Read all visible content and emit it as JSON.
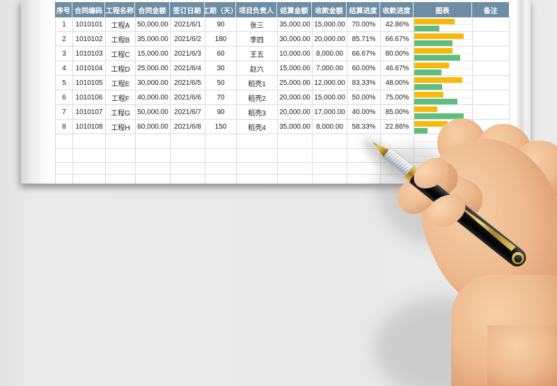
{
  "colors": {
    "backdrop": "#E9E9E9",
    "sheet": "#FFFFFF",
    "header_bg": "#6E8CA3",
    "header_text": "#FFFFFF",
    "grid_line": "#D8DBDD",
    "bar_settlement_orange": "#F9B80C",
    "bar_collection_green": "#5FBD7D"
  },
  "overlay": {
    "pen_icon": "fountain-pen",
    "hand_icon": "right-hand-holding-pen"
  },
  "table": {
    "columns": [
      {
        "key": "seq",
        "label": "序号"
      },
      {
        "key": "code",
        "label": "合同编码"
      },
      {
        "key": "name",
        "label": "工程名称"
      },
      {
        "key": "amount",
        "label": "合同金额"
      },
      {
        "key": "date",
        "label": "签订日期"
      },
      {
        "key": "days",
        "label": "工期（天）"
      },
      {
        "key": "owner",
        "label": "项目负责人"
      },
      {
        "key": "settle-amount",
        "label": "结算金额"
      },
      {
        "key": "receive-amount",
        "label": "收款金额"
      },
      {
        "key": "settle-pct",
        "label": "结算进度"
      },
      {
        "key": "receive-pct",
        "label": "收款进度"
      },
      {
        "key": "chart",
        "label": "图表"
      },
      {
        "key": "remark",
        "label": "备注"
      }
    ],
    "rows": [
      {
        "cells": [
          "1",
          "1010101",
          "工程A",
          "50,000.00",
          "2021/6/1",
          "90",
          "张三",
          "35,000.00",
          "15,000.00",
          "70.00%",
          "42.86%"
        ],
        "bars": {
          "settlement": 70.0,
          "collection": 42.86
        },
        "remark": ""
      },
      {
        "cells": [
          "2",
          "1010102",
          "工程B",
          "35,000.00",
          "2021/6/2",
          "180",
          "李四",
          "30,000.00",
          "20,000.00",
          "85.71%",
          "66.67%"
        ],
        "bars": {
          "settlement": 85.71,
          "collection": 66.67
        },
        "remark": ""
      },
      {
        "cells": [
          "3",
          "1010103",
          "工程C",
          "15,000.00",
          "2021/6/3",
          "60",
          "王五",
          "10,000.00",
          "8,000.00",
          "66.67%",
          "80.00%"
        ],
        "bars": {
          "settlement": 66.67,
          "collection": 80.0
        },
        "remark": ""
      },
      {
        "cells": [
          "4",
          "1010104",
          "工程D",
          "25,000.00",
          "2021/6/4",
          "30",
          "赵六",
          "15,000.00",
          "7,000.00",
          "60.00%",
          "46.67%"
        ],
        "bars": {
          "settlement": 60.0,
          "collection": 46.67
        },
        "remark": ""
      },
      {
        "cells": [
          "5",
          "1010105",
          "工程E",
          "30,000.00",
          "2021/6/5",
          "50",
          "稻壳1",
          "25,000.00",
          "12,000.00",
          "83.33%",
          "48.00%"
        ],
        "bars": {
          "settlement": 83.33,
          "collection": 48.0
        },
        "remark": ""
      },
      {
        "cells": [
          "6",
          "1010106",
          "工程F",
          "40,000.00",
          "2021/6/6",
          "70",
          "稻壳2",
          "20,000.00",
          "15,000.00",
          "50.00%",
          "75.00%"
        ],
        "bars": {
          "settlement": 50.0,
          "collection": 75.0
        },
        "remark": ""
      },
      {
        "cells": [
          "7",
          "1010107",
          "工程G",
          "50,000.00",
          "2021/6/7",
          "90",
          "稻壳3",
          "20,000.00",
          "17,000.00",
          "40.00%",
          "85.00%"
        ],
        "bars": {
          "settlement": 40.0,
          "collection": 85.0
        },
        "remark": ""
      },
      {
        "cells": [
          "8",
          "1010108",
          "工程H",
          "60,000.00",
          "2021/6/8",
          "150",
          "稻壳4",
          "35,000.00",
          "8,000.00",
          "58.33%",
          "22.86%"
        ],
        "bars": {
          "settlement": 58.33,
          "collection": 22.86
        },
        "remark": ""
      }
    ],
    "empty_row_heights": [
      21,
      20,
      17,
      14
    ]
  }
}
